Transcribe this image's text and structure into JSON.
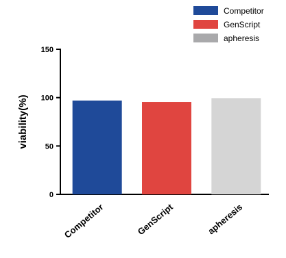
{
  "chart_data": {
    "type": "bar",
    "categories": [
      "Competitor",
      "GenScript",
      "apheresis"
    ],
    "values": [
      97,
      95.5,
      99.5
    ],
    "colors": [
      "#1f4a99",
      "#e04540",
      "#d5d5d5"
    ],
    "ylabel": "viability(%)",
    "xlabel": "",
    "ylim": [
      0,
      150
    ],
    "yticks": [
      0,
      50,
      100,
      150
    ],
    "grid": false,
    "legend": {
      "placement": "top-right",
      "entries": [
        {
          "label": "Competitor",
          "color": "#1f4a99"
        },
        {
          "label": "GenScript",
          "color": "#e04540"
        },
        {
          "label": "apheresis",
          "color": "#a9a9ab"
        }
      ]
    }
  }
}
